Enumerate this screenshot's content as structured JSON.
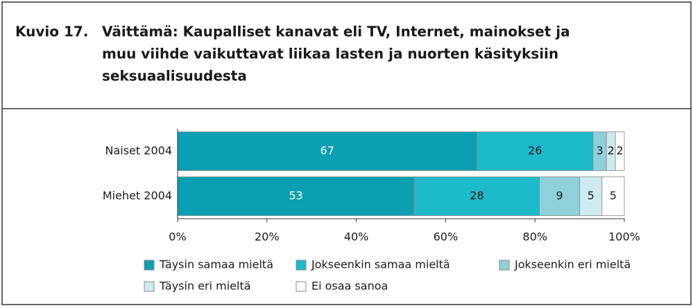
{
  "chart_data": {
    "type": "stacked_barh",
    "title_label": "Kuvio 17.",
    "title": [
      "Väittämä: Kaupalliset kanavat eli TV, Internet, mainokset ja",
      "muu viihde vaikuttavat liikaa lasten ja nuorten käsityksiin",
      "seksuaalisuudesta"
    ],
    "categories": [
      "Naiset 2004",
      "Miehet 2004"
    ],
    "series": [
      {
        "name": "Täysin samaa mieltä",
        "color": "#0aa0b2",
        "label_color": "#ffffff",
        "values": [
          67,
          53
        ]
      },
      {
        "name": "Jokseenkin samaa mieltä",
        "color": "#1dbaca",
        "label_color": "#1a1a1a",
        "values": [
          26,
          28
        ]
      },
      {
        "name": "Jokseenkin eri mieltä",
        "color": "#8fd0d9",
        "label_color": "#1a1a1a",
        "values": [
          3,
          9
        ]
      },
      {
        "name": "Täysin eri mieltä",
        "color": "#cdebf0",
        "label_color": "#1a1a1a",
        "values": [
          2,
          5
        ]
      },
      {
        "name": "Ei osaa sanoa",
        "color": "#ffffff",
        "label_color": "#1a1a1a",
        "values": [
          2,
          5
        ]
      }
    ],
    "xlim": [
      0,
      100
    ],
    "xticks": [
      {
        "value": 0,
        "label": "0%"
      },
      {
        "value": 20,
        "label": "20%"
      },
      {
        "value": 40,
        "label": "40%"
      },
      {
        "value": 60,
        "label": "60%"
      },
      {
        "value": 80,
        "label": "80%"
      },
      {
        "value": 100,
        "label": "100%"
      }
    ]
  }
}
